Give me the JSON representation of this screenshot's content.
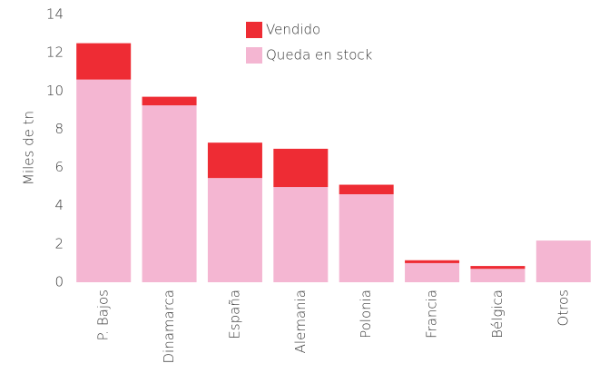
{
  "chart_data": {
    "type": "stacked_bar",
    "y_label": "Miles de tn",
    "categories": [
      "P. Bajos",
      "Dinamarca",
      "España",
      "Alemania",
      "Polonia",
      "Francia",
      "Bélgica",
      "Otros"
    ],
    "series": [
      {
        "name": "Vendido",
        "color": "#ee2c34",
        "values": [
          1.9,
          0.45,
          1.85,
          2.0,
          0.5,
          0.15,
          0.15,
          0
        ]
      },
      {
        "name": "Queda en stock",
        "color": "#f4b6d2",
        "values": [
          10.6,
          9.25,
          5.45,
          4.98,
          4.6,
          1.0,
          0.7,
          2.18
        ]
      }
    ],
    "ylim": [
      0,
      14
    ],
    "yticks": [
      0,
      2,
      4,
      6,
      8,
      10,
      12,
      14
    ],
    "grid": false,
    "legend": "top"
  }
}
